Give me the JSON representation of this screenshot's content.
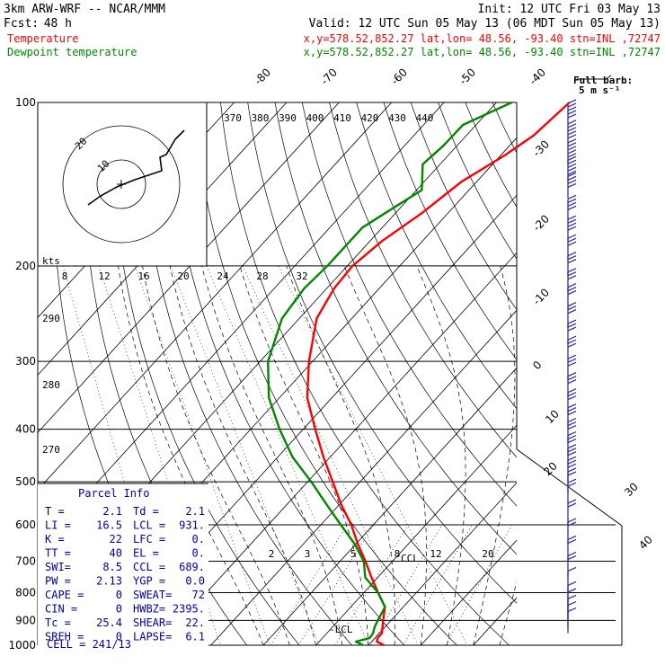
{
  "header": {
    "title": "3km ARW-WRF -- NCAR/MMM",
    "init": "Init: 12 UTC Fri 03 May 13",
    "fcst_label": "Fcst:",
    "fcst_value": "48 h",
    "valid": "Valid: 12 UTC Sun 05 May 13 (06 MDT Sun 05 May 13)"
  },
  "legend": {
    "temperature": {
      "label": "Temperature",
      "info": "x,y=578.52,852.27   lat,lon= 48.56, -93.40   stn=INL ,72747",
      "color": "#ff0000"
    },
    "dewpoint": {
      "label": "Dewpoint temperature",
      "info": "x,y=578.52,852.27   lat,lon= 48.56, -93.40   stn=INL ,72747",
      "color": "#008800"
    }
  },
  "wind_legend": {
    "line1": "Full barb:",
    "line2": "5 m s⁻¹"
  },
  "hodograph": {
    "kts_label": "kts",
    "ring_labels": [
      "20",
      "10"
    ]
  },
  "parcel_info": {
    "title": "Parcel Info",
    "rows": [
      [
        "T  =",
        "2.1",
        "Td =",
        "2.1"
      ],
      [
        "LI =",
        "16.5",
        "LCL =",
        "931."
      ],
      [
        "K  =",
        "22",
        "LFC =",
        "0."
      ],
      [
        "TT =",
        "40",
        "EL  =",
        "0."
      ],
      [
        "SWI=",
        "8.5",
        "CCL =",
        "689."
      ],
      [
        "PW =",
        "2.13",
        "YGP =",
        "0.0"
      ],
      [
        "CAPE =",
        "0",
        "SWEAT=",
        "72"
      ],
      [
        "CIN  =",
        "0",
        "HWBZ=",
        "2395."
      ],
      [
        "Tc   =",
        "25.4",
        "SHEAR=",
        "22."
      ],
      [
        "SREH =",
        "0",
        "LAPSE=",
        "6.1"
      ]
    ],
    "cell": "CELL = 241/13"
  },
  "level_labels": {
    "lcl": "-LCL",
    "ccl": "CCL"
  },
  "chart_data": {
    "type": "line",
    "title": "3km ARW-WRF -- NCAR/MMM",
    "ylabel": "",
    "xlabel": "",
    "pressure_levels": [
      100,
      200,
      300,
      400,
      500,
      600,
      700,
      800,
      900,
      1000
    ],
    "isotherm_labels": [
      "-80",
      "-70",
      "-60",
      "-50",
      "-40",
      "-30",
      "-20",
      "-10",
      "0",
      "10",
      "20",
      "30",
      "40"
    ],
    "theta_labels": [
      "370",
      "380",
      "390",
      "400",
      "410",
      "420",
      "430",
      "440"
    ],
    "mixing_ratio_upper": [
      "8",
      "12",
      "16",
      "20",
      "24",
      "28",
      "32"
    ],
    "mixing_ratio_lower": [
      "2",
      "3",
      "5",
      "8",
      "12",
      "20"
    ],
    "theta_left_labels": [
      "290",
      "280",
      "270"
    ],
    "series": [
      {
        "name": "Temperature",
        "color": "#ff0000",
        "points": [
          [
            1000,
            13.0
          ],
          [
            985,
            11.0
          ],
          [
            970,
            10.5
          ],
          [
            950,
            10.5
          ],
          [
            925,
            9.5
          ],
          [
            900,
            8.5
          ],
          [
            875,
            7.5
          ],
          [
            850,
            6.5
          ],
          [
            800,
            2.7
          ],
          [
            750,
            -1.2
          ],
          [
            700,
            -5.2
          ],
          [
            650,
            -9.7
          ],
          [
            600,
            -14.2
          ],
          [
            550,
            -19.7
          ],
          [
            500,
            -25.2
          ],
          [
            450,
            -31.3
          ],
          [
            400,
            -37.7
          ],
          [
            350,
            -44.7
          ],
          [
            300,
            -50.7
          ],
          [
            250,
            -56.7
          ],
          [
            220,
            -58.6
          ],
          [
            200,
            -59.0
          ],
          [
            180,
            -57.7
          ],
          [
            160,
            -55.0
          ],
          [
            140,
            -52.9
          ],
          [
            125,
            -49.2
          ],
          [
            115,
            -47.2
          ],
          [
            100,
            -46.1
          ]
        ]
      },
      {
        "name": "Dewpoint temperature",
        "color": "#008800",
        "points": [
          [
            1000,
            9.0
          ],
          [
            985,
            7.0
          ],
          [
            970,
            9.0
          ],
          [
            950,
            8.8
          ],
          [
            925,
            8.0
          ],
          [
            900,
            7.5
          ],
          [
            875,
            7.0
          ],
          [
            850,
            6.5
          ],
          [
            800,
            2.7
          ],
          [
            750,
            -2.4
          ],
          [
            700,
            -5.5
          ],
          [
            650,
            -10.3
          ],
          [
            600,
            -16.2
          ],
          [
            550,
            -22.5
          ],
          [
            500,
            -29.3
          ],
          [
            450,
            -37.2
          ],
          [
            400,
            -44.5
          ],
          [
            350,
            -52.0
          ],
          [
            300,
            -58.5
          ],
          [
            250,
            -63.3
          ],
          [
            220,
            -64.3
          ],
          [
            200,
            -63.8
          ],
          [
            170,
            -63.8
          ],
          [
            160,
            -62.0
          ],
          [
            145,
            -59.0
          ],
          [
            130,
            -63.3
          ],
          [
            120,
            -62.6
          ],
          [
            110,
            -62.5
          ],
          [
            100,
            -57.1
          ]
        ]
      }
    ],
    "wind_profile": [
      {
        "p": 110,
        "speed_kt": 50,
        "dir_deg": 270
      },
      {
        "p": 120,
        "speed_kt": 50,
        "dir_deg": 270
      },
      {
        "p": 130,
        "speed_kt": 45,
        "dir_deg": 270
      },
      {
        "p": 140,
        "speed_kt": 45,
        "dir_deg": 270
      },
      {
        "p": 150,
        "speed_kt": 40,
        "dir_deg": 270
      },
      {
        "p": 165,
        "speed_kt": 40,
        "dir_deg": 270
      },
      {
        "p": 180,
        "speed_kt": 35,
        "dir_deg": 275
      },
      {
        "p": 195,
        "speed_kt": 30,
        "dir_deg": 275
      },
      {
        "p": 210,
        "speed_kt": 30,
        "dir_deg": 275
      },
      {
        "p": 225,
        "speed_kt": 30,
        "dir_deg": 280
      },
      {
        "p": 240,
        "speed_kt": 30,
        "dir_deg": 280
      },
      {
        "p": 260,
        "speed_kt": 30,
        "dir_deg": 280
      },
      {
        "p": 280,
        "speed_kt": 30,
        "dir_deg": 285
      },
      {
        "p": 300,
        "speed_kt": 25,
        "dir_deg": 285
      },
      {
        "p": 325,
        "speed_kt": 25,
        "dir_deg": 285
      },
      {
        "p": 350,
        "speed_kt": 25,
        "dir_deg": 290
      },
      {
        "p": 375,
        "speed_kt": 25,
        "dir_deg": 290
      },
      {
        "p": 400,
        "speed_kt": 25,
        "dir_deg": 290
      },
      {
        "p": 425,
        "speed_kt": 25,
        "dir_deg": 295
      },
      {
        "p": 450,
        "speed_kt": 25,
        "dir_deg": 295
      },
      {
        "p": 475,
        "speed_kt": 25,
        "dir_deg": 295
      },
      {
        "p": 500,
        "speed_kt": 25,
        "dir_deg": 300
      },
      {
        "p": 525,
        "speed_kt": 20,
        "dir_deg": 300
      },
      {
        "p": 550,
        "speed_kt": 20,
        "dir_deg": 300
      },
      {
        "p": 600,
        "speed_kt": 20,
        "dir_deg": 300
      },
      {
        "p": 650,
        "speed_kt": 15,
        "dir_deg": 300
      },
      {
        "p": 700,
        "speed_kt": 15,
        "dir_deg": 300
      },
      {
        "p": 750,
        "speed_kt": 15,
        "dir_deg": 300
      },
      {
        "p": 800,
        "speed_kt": 10,
        "dir_deg": 300
      },
      {
        "p": 850,
        "speed_kt": 10,
        "dir_deg": 310
      },
      {
        "p": 875,
        "speed_kt": 10,
        "dir_deg": 310
      },
      {
        "p": 900,
        "speed_kt": 10,
        "dir_deg": 310
      },
      {
        "p": 925,
        "speed_kt": 10,
        "dir_deg": 320
      },
      {
        "p": 950,
        "speed_kt": 10,
        "dir_deg": 320
      }
    ]
  }
}
